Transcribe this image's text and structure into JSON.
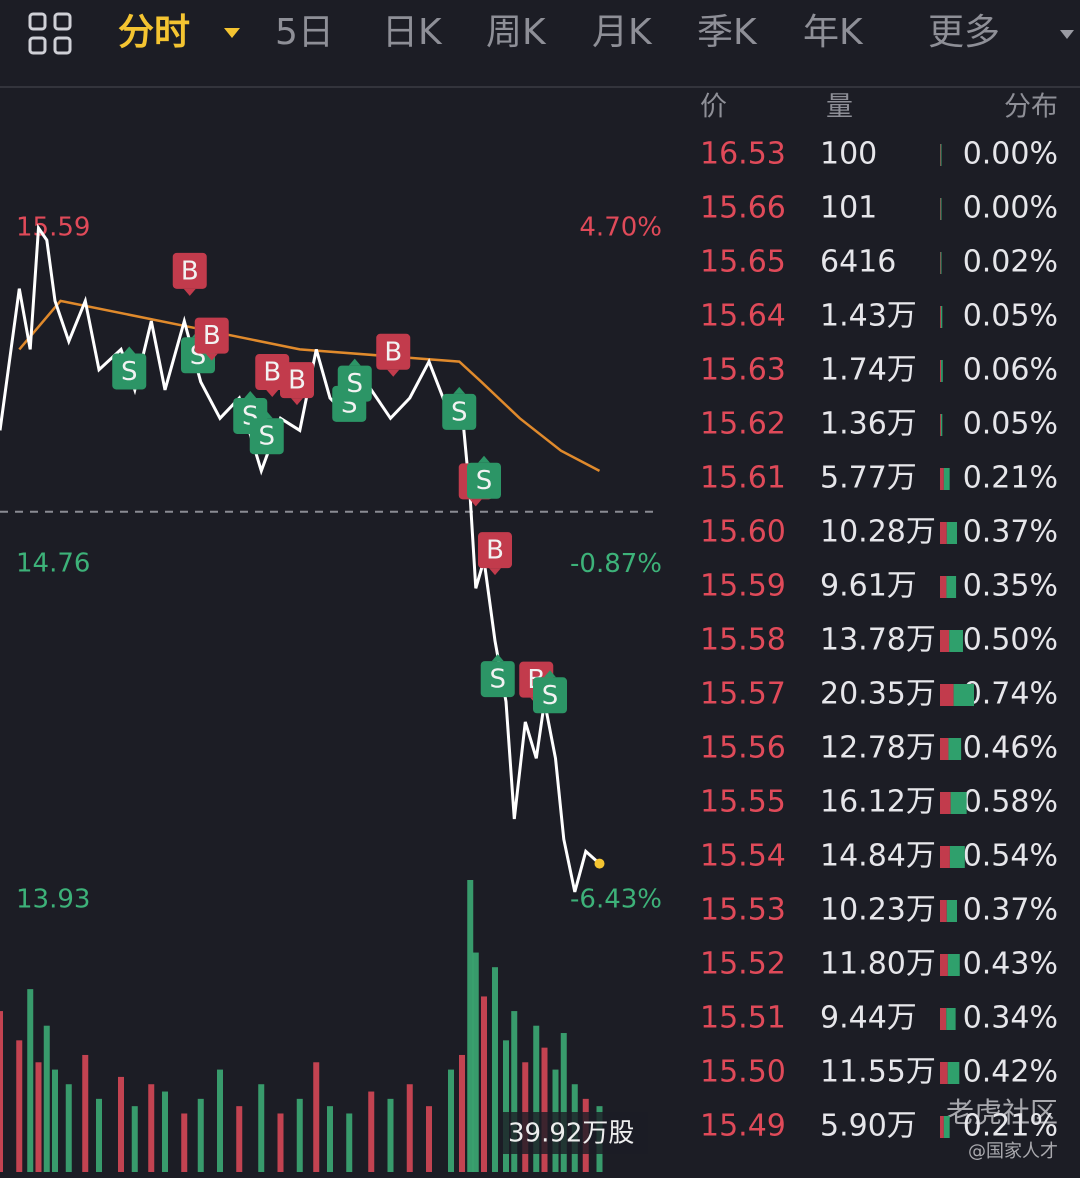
{
  "tabs": [
    "分时",
    "5日",
    "日K",
    "周K",
    "月K",
    "季K",
    "年K",
    "更多"
  ],
  "active_tab": 0,
  "chart_data": {
    "type": "line",
    "xlim": [
      0,
      240
    ],
    "ylim": [
      13.93,
      15.59
    ],
    "yticks": [
      13.93,
      14.76,
      15.59
    ],
    "y2lim": [
      -6.43,
      4.7
    ],
    "y2ticks": [
      {
        "value": -6.43,
        "label": "-6.43%"
      },
      {
        "value": -0.87,
        "label": "-0.87%"
      },
      {
        "value": 4.7,
        "label": "4.70%"
      }
    ],
    "series": [
      {
        "name": "价格",
        "color": "#ffffff",
        "x": [
          0,
          7,
          11,
          14,
          17,
          20,
          25,
          31,
          36,
          44,
          49,
          55,
          60,
          67,
          73,
          80,
          87,
          95,
          102,
          109,
          115,
          120,
          127,
          135,
          142,
          149,
          156,
          164,
          168,
          171,
          173,
          176,
          180,
          184,
          187,
          191,
          195,
          198,
          202,
          205,
          209,
          213,
          218
        ],
        "values": [
          15.09,
          15.44,
          15.29,
          15.59,
          15.56,
          15.41,
          15.31,
          15.41,
          15.24,
          15.29,
          15.19,
          15.36,
          15.19,
          15.36,
          15.21,
          15.12,
          15.17,
          14.99,
          15.12,
          15.09,
          15.29,
          15.17,
          15.12,
          15.19,
          15.12,
          15.17,
          15.26,
          15.12,
          15.14,
          14.92,
          14.7,
          14.77,
          14.57,
          14.42,
          14.13,
          14.37,
          14.28,
          14.42,
          14.28,
          14.08,
          13.95,
          14.05,
          14.02
        ]
      },
      {
        "name": "均价",
        "color": "#e08a2c",
        "x": [
          7,
          22,
          73,
          109,
          167,
          175,
          189,
          204,
          218
        ],
        "values": [
          15.29,
          15.41,
          15.34,
          15.29,
          15.26,
          15.21,
          15.12,
          15.04,
          14.99
        ]
      }
    ],
    "markers": [
      {
        "x": 47,
        "y": 15.29,
        "label": "S"
      },
      {
        "x": 69,
        "y": 15.42,
        "label": "B"
      },
      {
        "x": 72,
        "y": 15.33,
        "label": "S"
      },
      {
        "x": 77,
        "y": 15.26,
        "label": "B"
      },
      {
        "x": 91,
        "y": 15.18,
        "label": "S"
      },
      {
        "x": 97,
        "y": 15.13,
        "label": "S"
      },
      {
        "x": 99,
        "y": 15.17,
        "label": "B"
      },
      {
        "x": 108,
        "y": 15.15,
        "label": "B"
      },
      {
        "x": 127,
        "y": 15.21,
        "label": "S"
      },
      {
        "x": 129,
        "y": 15.26,
        "label": "S"
      },
      {
        "x": 143,
        "y": 15.22,
        "label": "B"
      },
      {
        "x": 167,
        "y": 15.19,
        "label": "S"
      },
      {
        "x": 173,
        "y": 14.9,
        "label": "B"
      },
      {
        "x": 176,
        "y": 15.02,
        "label": "S"
      },
      {
        "x": 180,
        "y": 14.73,
        "label": "B"
      },
      {
        "x": 181,
        "y": 14.53,
        "label": "S"
      },
      {
        "x": 195,
        "y": 14.41,
        "label": "B"
      },
      {
        "x": 200,
        "y": 14.49,
        "label": "S"
      }
    ],
    "marker_colors": {
      "B": "#c23b4c",
      "S": "#2c9566"
    },
    "volume": {
      "values": [
        22,
        18,
        25,
        15,
        20,
        14,
        12,
        16,
        10,
        13,
        9,
        12,
        11,
        8,
        10,
        14,
        9,
        12,
        8,
        10,
        15,
        9,
        8,
        11,
        10,
        12,
        9,
        14,
        16,
        39.92,
        30,
        24,
        28,
        18,
        22,
        15,
        20,
        17,
        14,
        19,
        12,
        10,
        9
      ],
      "max": {
        "value": 39.92,
        "label": "39.92万股"
      }
    }
  },
  "table": {
    "header": [
      "价",
      "量",
      "分布"
    ],
    "rows": [
      {
        "price": "16.53",
        "volume": "100",
        "share": {
          "value": 0.0,
          "label": "0.00%"
        }
      },
      {
        "price": "15.66",
        "volume": "101",
        "share": {
          "value": 0.0,
          "label": "0.00%"
        }
      },
      {
        "price": "15.65",
        "volume": "6416",
        "share": {
          "value": 0.02,
          "label": "0.02%"
        }
      },
      {
        "price": "15.64",
        "volume": "1.43万",
        "share": {
          "value": 0.05,
          "label": "0.05%"
        }
      },
      {
        "price": "15.63",
        "volume": "1.74万",
        "share": {
          "value": 0.06,
          "label": "0.06%"
        }
      },
      {
        "price": "15.62",
        "volume": "1.36万",
        "share": {
          "value": 0.05,
          "label": "0.05%"
        }
      },
      {
        "price": "15.61",
        "volume": "5.77万",
        "share": {
          "value": 0.21,
          "label": "0.21%"
        }
      },
      {
        "price": "15.60",
        "volume": "10.28万",
        "share": {
          "value": 0.37,
          "label": "0.37%"
        }
      },
      {
        "price": "15.59",
        "volume": "9.61万",
        "share": {
          "value": 0.35,
          "label": "0.35%"
        }
      },
      {
        "price": "15.58",
        "volume": "13.78万",
        "share": {
          "value": 0.5,
          "label": "0.50%"
        }
      },
      {
        "price": "15.57",
        "volume": "20.35万",
        "share": {
          "value": 0.74,
          "label": "0.74%"
        }
      },
      {
        "price": "15.56",
        "volume": "12.78万",
        "share": {
          "value": 0.46,
          "label": "0.46%"
        }
      },
      {
        "price": "15.55",
        "volume": "16.12万",
        "share": {
          "value": 0.58,
          "label": "0.58%"
        }
      },
      {
        "price": "15.54",
        "volume": "14.84万",
        "share": {
          "value": 0.54,
          "label": "0.54%"
        }
      },
      {
        "price": "15.53",
        "volume": "10.23万",
        "share": {
          "value": 0.37,
          "label": "0.37%"
        }
      },
      {
        "price": "15.52",
        "volume": "11.80万",
        "share": {
          "value": 0.43,
          "label": "0.43%"
        }
      },
      {
        "price": "15.51",
        "volume": "9.44万",
        "share": {
          "value": 0.34,
          "label": "0.34%"
        }
      },
      {
        "price": "15.50",
        "volume": "11.55万",
        "share": {
          "value": 0.42,
          "label": "0.42%"
        }
      },
      {
        "price": "15.49",
        "volume": "5.90万",
        "share": {
          "value": 0.21,
          "label": "0.21%"
        }
      }
    ]
  },
  "watermark": {
    "brand": "老虎社区",
    "user": "@国家人才"
  }
}
